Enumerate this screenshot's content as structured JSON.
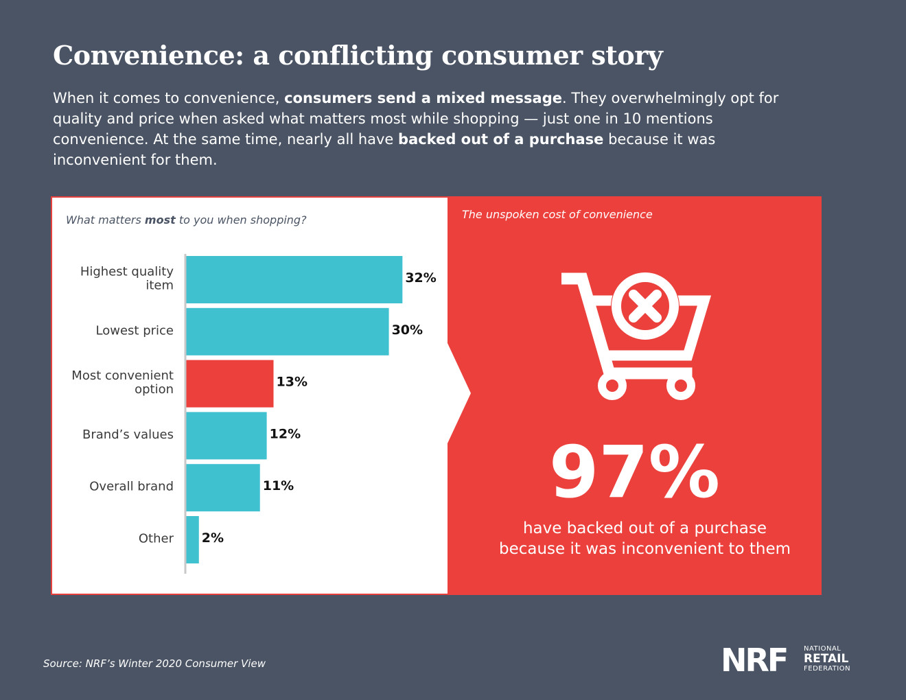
{
  "title": "Convenience: a conflicting consumer story",
  "intro": {
    "p1": "When it comes to convenience, ",
    "b1": "consumers send a mixed message",
    "p2": ". They overwhelmingly opt for quality and price when asked what matters most while shopping — just one in 10 mentions convenience. At the same time, nearly all have ",
    "b2": "backed out of a purchase",
    "p3": " because it was inconvenient for them."
  },
  "chart_question": {
    "pre": "What matters ",
    "bold": "most",
    "post": " to you when shopping?"
  },
  "chart_data": {
    "type": "bar",
    "orientation": "horizontal",
    "title": "What matters most to you when shopping?",
    "categories": [
      [
        "Highest quality",
        "item"
      ],
      [
        "Lowest price"
      ],
      [
        "Most convenient",
        "option"
      ],
      [
        "Brand’s values"
      ],
      [
        "Overall brand"
      ],
      [
        "Other"
      ]
    ],
    "values": [
      32,
      30,
      13,
      12,
      11,
      2
    ],
    "value_labels": [
      "32%",
      "30%",
      "13%",
      "12%",
      "11%",
      "2%"
    ],
    "highlight_index": 2,
    "xlim": [
      0,
      35
    ],
    "colors": {
      "bar": "#3fc1d0",
      "highlight": "#ec403c"
    }
  },
  "right_panel": {
    "title": "The unspoken cost of convenience",
    "icon": "cart-x-icon",
    "big_value": "97%",
    "caption_line1": "have backed out of a purchase",
    "caption_line2": "because it was inconvenient to them"
  },
  "source": "Source: NRF’s Winter 2020 Consumer View",
  "logo": {
    "mark": "NRF",
    "line1": "NATIONAL",
    "line2": "RETAIL",
    "line3": "FEDERATION"
  },
  "colors": {
    "background": "#4a5464",
    "accent_red": "#ec403c",
    "accent_teal": "#3fc1d0"
  }
}
